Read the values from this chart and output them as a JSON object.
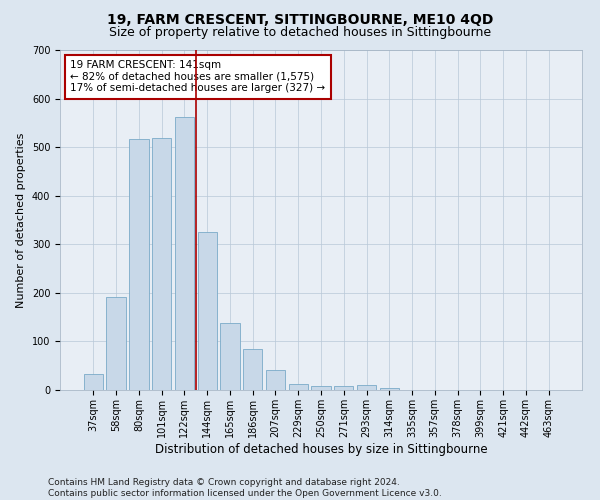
{
  "title1": "19, FARM CRESCENT, SITTINGBOURNE, ME10 4QD",
  "title2": "Size of property relative to detached houses in Sittingbourne",
  "xlabel": "Distribution of detached houses by size in Sittingbourne",
  "ylabel": "Number of detached properties",
  "categories": [
    "37sqm",
    "58sqm",
    "80sqm",
    "101sqm",
    "122sqm",
    "144sqm",
    "165sqm",
    "186sqm",
    "207sqm",
    "229sqm",
    "250sqm",
    "271sqm",
    "293sqm",
    "314sqm",
    "335sqm",
    "357sqm",
    "378sqm",
    "399sqm",
    "421sqm",
    "442sqm",
    "463sqm"
  ],
  "values": [
    33,
    192,
    516,
    519,
    563,
    325,
    138,
    85,
    42,
    13,
    8,
    8,
    10,
    5,
    0,
    0,
    0,
    0,
    0,
    0,
    0
  ],
  "bar_color": "#c8d8e8",
  "bar_edge_color": "#7aaac8",
  "vline_color": "#aa0000",
  "annotation_box_color": "#aa0000",
  "annotation_text_line1": "19 FARM CRESCENT: 141sqm",
  "annotation_text_line2": "← 82% of detached houses are smaller (1,575)",
  "annotation_text_line3": "17% of semi-detached houses are larger (327) →",
  "ylim": [
    0,
    700
  ],
  "yticks": [
    0,
    100,
    200,
    300,
    400,
    500,
    600,
    700
  ],
  "footer_line1": "Contains HM Land Registry data © Crown copyright and database right 2024.",
  "footer_line2": "Contains public sector information licensed under the Open Government Licence v3.0.",
  "bg_color": "#dce6f0",
  "plot_bg_color": "#e8eef5",
  "title1_fontsize": 10,
  "title2_fontsize": 9,
  "xlabel_fontsize": 8.5,
  "ylabel_fontsize": 8,
  "tick_fontsize": 7,
  "annotation_fontsize": 7.5,
  "footer_fontsize": 6.5
}
